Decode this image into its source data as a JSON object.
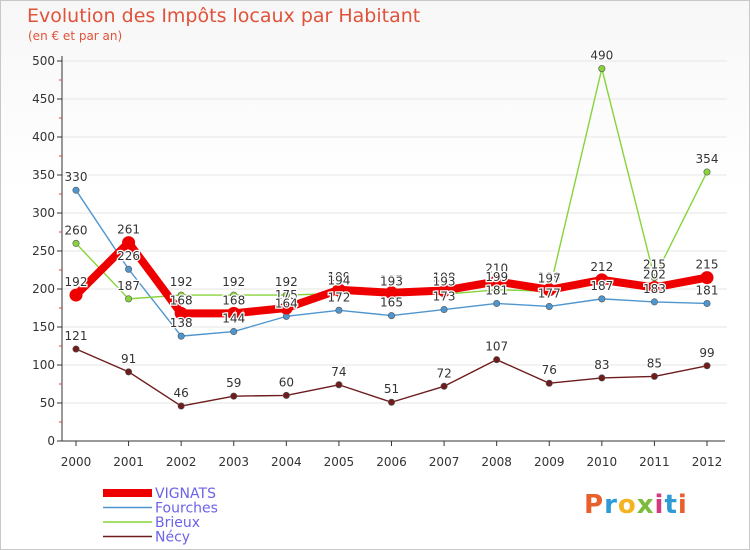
{
  "title": "Evolution des Impôts locaux par Habitant",
  "subtitle": "(en € et par an)",
  "logo_text": "Proxiti",
  "colors": {
    "title": "#e0523a",
    "axis": "#333333",
    "grid": "#e6e6e6",
    "legend_text": "#6b63e8"
  },
  "chart_data": {
    "type": "line",
    "title": "Evolution des Impôts locaux par Habitant",
    "subtitle": "(en € et par an)",
    "xlabel": "",
    "ylabel": "",
    "x": [
      "2000",
      "2001",
      "2002",
      "2003",
      "2004",
      "2005",
      "2006",
      "2007",
      "2008",
      "2009",
      "2010",
      "2011",
      "2012"
    ],
    "ylim": [
      0,
      500
    ],
    "yticks": [
      0,
      50,
      100,
      150,
      200,
      250,
      300,
      350,
      400,
      450,
      500
    ],
    "grid": false,
    "legend_position": "bottom-left",
    "series": [
      {
        "name": "VIGNATS",
        "color": "#ee0000",
        "emphasis": true,
        "values": [
          192,
          261,
          168,
          168,
          175,
          199,
          195,
          198,
          210,
          199,
          212,
          202,
          215
        ],
        "labels": [
          "192",
          "261",
          "168",
          "168",
          "175",
          "199",
          "195",
          "198",
          "210",
          "199",
          "212",
          "202",
          "215"
        ]
      },
      {
        "name": "Fourches",
        "color": "#4f96cf",
        "values": [
          330,
          226,
          138,
          144,
          164,
          172,
          165,
          173,
          181,
          177,
          187,
          183,
          181
        ],
        "labels": [
          "330",
          "226",
          "138",
          "144",
          "164",
          "172",
          "165",
          "173",
          "181",
          "177",
          "187",
          "183",
          "181"
        ]
      },
      {
        "name": "Brieux",
        "color": "#86d43a",
        "values": [
          260,
          187,
          192,
          192,
          192,
          194,
          193,
          193,
          199,
          197,
          490,
          215,
          354
        ],
        "labels": [
          "260",
          "187",
          "192",
          "192",
          "192",
          "194",
          "193",
          "193",
          "199",
          "197",
          "490",
          "215",
          "354"
        ]
      },
      {
        "name": "Nécy",
        "color": "#6e1c1c",
        "values": [
          121,
          91,
          46,
          59,
          60,
          74,
          51,
          72,
          107,
          76,
          83,
          85,
          99
        ],
        "labels": [
          "121",
          "91",
          "46",
          "59",
          "60",
          "74",
          "51",
          "72",
          "107",
          "76",
          "83",
          "85",
          "99"
        ]
      }
    ]
  }
}
